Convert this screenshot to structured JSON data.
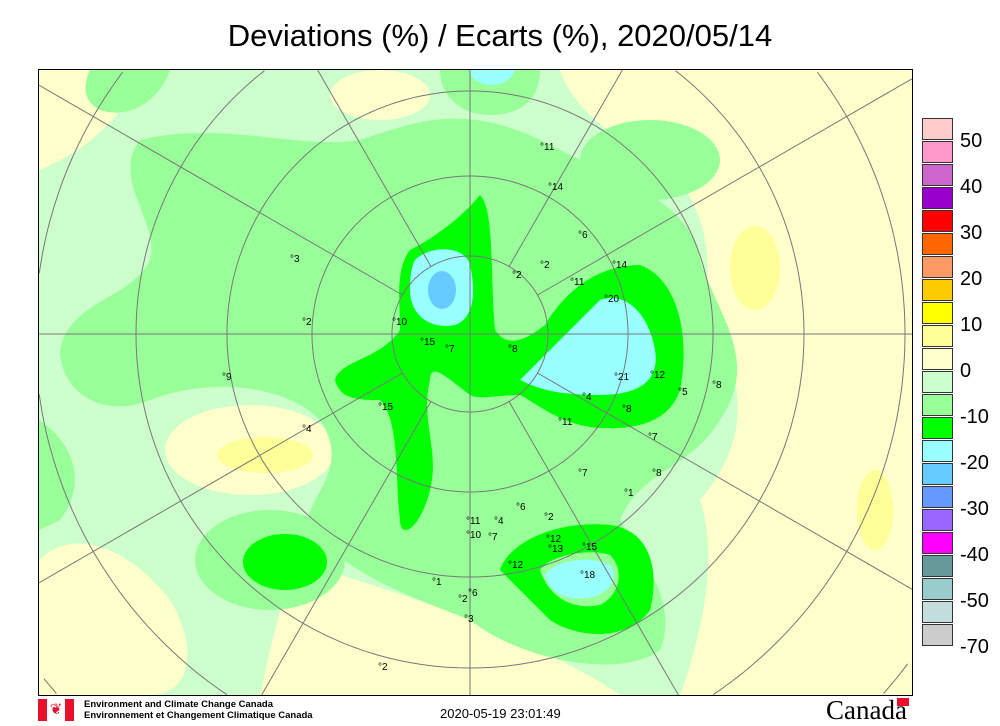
{
  "title": "Deviations (%) / Ecarts (%), 2020/05/14",
  "legend": {
    "colors": [
      "#ffcccc",
      "#ff99cc",
      "#cc66cc",
      "#9900cc",
      "#ff0000",
      "#ff6600",
      "#ff9966",
      "#ffcc00",
      "#ffff00",
      "#ffff99",
      "#ffffcc",
      "#ccffcc",
      "#99ff99",
      "#00ff00",
      "#99ffff",
      "#66ccff",
      "#6699ff",
      "#9966ff",
      "#ff00ff",
      "#669999",
      "#99cccc",
      "#c4dede",
      "#cccccc"
    ],
    "labels": [
      "50",
      "40",
      "30",
      "20",
      "10",
      "0",
      "-10",
      "-20",
      "-30",
      "-40",
      "-50",
      "-70"
    ]
  },
  "map": {
    "projection": "north polar stereographic",
    "contour_labels": [
      "11",
      "14",
      "6",
      "2",
      "2",
      "11",
      "14",
      "20",
      "21",
      "12",
      "5",
      "8",
      "4",
      "7",
      "15",
      "10",
      "15",
      "7",
      "8",
      "2",
      "3",
      "9",
      "4",
      "11",
      "8",
      "8",
      "1",
      "7",
      "6",
      "4",
      "2",
      "12",
      "13",
      "15",
      "18",
      "12",
      "1",
      "2",
      "6",
      "3",
      "2",
      "11",
      "10",
      "7"
    ]
  },
  "footer": {
    "org_en": "Environment and Climate Change Canada",
    "org_fr": "Environnement et Changement Climatique Canada",
    "timestamp": "2020-05-19 23:01:49",
    "wordmark": "Canada"
  }
}
